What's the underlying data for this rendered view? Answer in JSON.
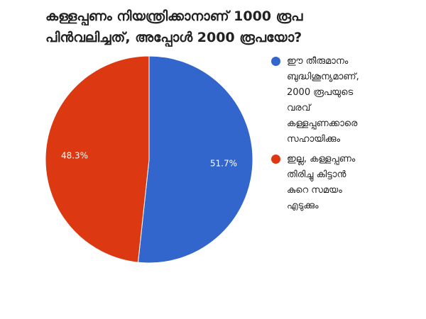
{
  "chart_data": {
    "type": "pie",
    "title_lines": [
      "കള്ളപ്പണം നിയന്ത്രിക്കാനാണ് 1000 രൂപ",
      "പിൻവലിച്ചത്, അപ്പോൾ 2000 രൂപയോ?"
    ],
    "slices": [
      {
        "label_lines": [
          "ഈ തീരുമാനം",
          "ബുദ്ധിശൂന്യമാണ്,",
          "2000 രൂപയുടെ",
          "വരവ്",
          "കള്ളപ്പണക്കാരെ",
          "സഹായിക്കും"
        ],
        "value": 51.7,
        "display": "51.7%",
        "color": "#3366cc"
      },
      {
        "label_lines": [
          "ഇല്ല, കള്ളപ്പണം",
          "തിരിച്ചു കിട്ടാൻ",
          "കുറെ സമയം",
          "എടുക്കും"
        ],
        "value": 48.3,
        "display": "48.3%",
        "color": "#dc3912"
      }
    ],
    "legend_position": "right"
  }
}
